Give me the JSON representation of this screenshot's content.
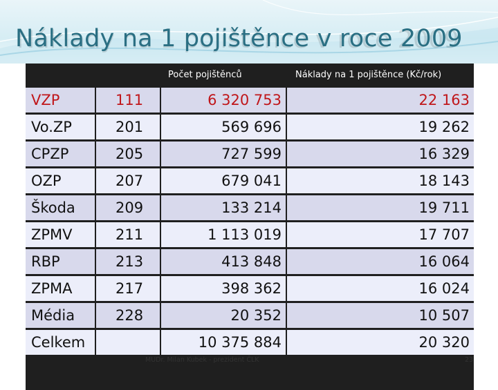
{
  "slide": {
    "title": "Náklady na 1 pojištěnce v roce 2009",
    "footer": "MUDr. Milan Kubek - prezident ČLK",
    "page_number": "23"
  },
  "table": {
    "headers": {
      "name": "",
      "code": "",
      "insured_count": "Počet pojištěnců",
      "cost_per_insured": "Náklady na 1 pojištěnce (Kč/rok)"
    },
    "rows": [
      {
        "name": "VZP",
        "code": "111",
        "insured_count": "6 320 753",
        "cost": "22 163",
        "highlight": true
      },
      {
        "name": "Vo.ZP",
        "code": "201",
        "insured_count": "569 696",
        "cost": "19 262",
        "highlight": false
      },
      {
        "name": "CPZP",
        "code": "205",
        "insured_count": "727 599",
        "cost": "16 329",
        "highlight": false
      },
      {
        "name": "OZP",
        "code": "207",
        "insured_count": "679 041",
        "cost": "18 143",
        "highlight": false
      },
      {
        "name": "Škoda",
        "code": "209",
        "insured_count": "133 214",
        "cost": "19 711",
        "highlight": false
      },
      {
        "name": "ZPMV",
        "code": "211",
        "insured_count": "1 113 019",
        "cost": "17 707",
        "highlight": false
      },
      {
        "name": "RBP",
        "code": "213",
        "insured_count": "413 848",
        "cost": "16 064",
        "highlight": false
      },
      {
        "name": "ZPMA",
        "code": "217",
        "insured_count": "398 362",
        "cost": "16 024",
        "highlight": false
      },
      {
        "name": "Média",
        "code": "228",
        "insured_count": "20 352",
        "cost": "10 507",
        "highlight": false
      },
      {
        "name": "Celkem",
        "code": "",
        "insured_count": "10 375 884",
        "cost": "20 320",
        "highlight": false
      }
    ]
  },
  "colors": {
    "title": "#2a6f83",
    "highlight_text": "#c0161a",
    "header_bar": "#1f1f1f",
    "row_dark": "#d8d9ec",
    "row_light": "#eceefa"
  }
}
